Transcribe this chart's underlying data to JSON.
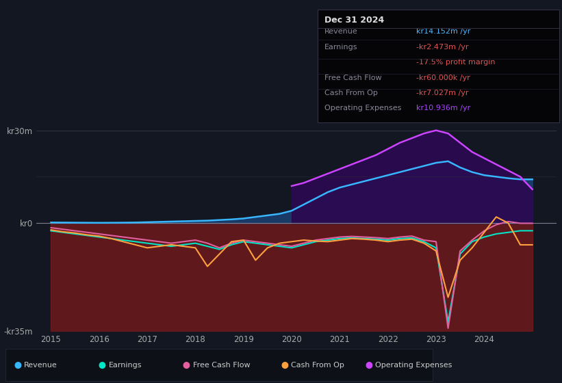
{
  "background_color": "#131722",
  "plot_bg_color": "#131722",
  "title_box": {
    "date": "Dec 31 2024",
    "rows": [
      {
        "label": "Revenue",
        "value": "kr14.152m /yr",
        "value_color": "#4db8ff"
      },
      {
        "label": "Earnings",
        "value": "-kr2.473m /yr",
        "value_color": "#e05555"
      },
      {
        "label": "",
        "value": "-17.5% profit margin",
        "value_color": "#e05555"
      },
      {
        "label": "Free Cash Flow",
        "value": "-kr60.000k /yr",
        "value_color": "#e05555"
      },
      {
        "label": "Cash From Op",
        "value": "-kr7.027m /yr",
        "value_color": "#e05555"
      },
      {
        "label": "Operating Expenses",
        "value": "kr10.936m /yr",
        "value_color": "#aa44ff"
      }
    ]
  },
  "ylim": [
    -35000000,
    35000000
  ],
  "yticks": [
    30000000,
    0,
    -35000000
  ],
  "ytick_labels": [
    "kr30m",
    "kr0",
    "-kr35m"
  ],
  "xlim_start": 2014.7,
  "xlim_end": 2025.5,
  "xticks": [
    2015,
    2016,
    2017,
    2018,
    2019,
    2020,
    2021,
    2022,
    2023,
    2024
  ],
  "series": {
    "revenue": {
      "color": "#38b6ff",
      "label": "Revenue"
    },
    "earnings": {
      "color": "#00e5c8",
      "label": "Earnings"
    },
    "free_cash_flow": {
      "color": "#e060a0",
      "label": "Free Cash Flow"
    },
    "cash_from_op": {
      "color": "#ffa040",
      "label": "Cash From Op"
    },
    "operating_expenses": {
      "color": "#cc44ff",
      "label": "Operating Expenses"
    }
  },
  "legend": {
    "items": [
      {
        "label": "Revenue",
        "color": "#38b6ff"
      },
      {
        "label": "Earnings",
        "color": "#00e5c8"
      },
      {
        "label": "Free Cash Flow",
        "color": "#e060a0"
      },
      {
        "label": "Cash From Op",
        "color": "#ffa040"
      },
      {
        "label": "Operating Expenses",
        "color": "#cc44ff"
      }
    ]
  },
  "x_years": [
    2015.0,
    2015.25,
    2015.5,
    2015.75,
    2016.0,
    2016.25,
    2016.5,
    2016.75,
    2017.0,
    2017.25,
    2017.5,
    2017.75,
    2018.0,
    2018.25,
    2018.5,
    2018.75,
    2019.0,
    2019.25,
    2019.5,
    2019.75,
    2020.0,
    2020.25,
    2020.5,
    2020.75,
    2021.0,
    2021.25,
    2021.5,
    2021.75,
    2022.0,
    2022.25,
    2022.5,
    2022.75,
    2023.0,
    2023.25,
    2023.5,
    2023.75,
    2024.0,
    2024.25,
    2024.5,
    2024.75,
    2025.0
  ],
  "revenue_data": [
    200000,
    180000,
    150000,
    120000,
    100000,
    120000,
    150000,
    200000,
    300000,
    400000,
    500000,
    600000,
    700000,
    800000,
    1000000,
    1200000,
    1500000,
    2000000,
    2500000,
    3000000,
    4000000,
    6000000,
    8000000,
    10000000,
    11500000,
    12500000,
    13500000,
    14500000,
    15500000,
    16500000,
    17500000,
    18500000,
    19500000,
    20000000,
    18000000,
    16500000,
    15500000,
    15000000,
    14500000,
    14152000,
    14152000
  ],
  "earnings_data": [
    -2500000,
    -3000000,
    -3500000,
    -4000000,
    -4500000,
    -5000000,
    -5500000,
    -6000000,
    -6500000,
    -7000000,
    -7500000,
    -7000000,
    -6500000,
    -7500000,
    -8500000,
    -7000000,
    -6000000,
    -6500000,
    -7000000,
    -7500000,
    -8000000,
    -7000000,
    -6000000,
    -5500000,
    -5000000,
    -4800000,
    -5000000,
    -5200000,
    -5500000,
    -5000000,
    -4800000,
    -6000000,
    -8000000,
    -32000000,
    -10000000,
    -6000000,
    -4500000,
    -3500000,
    -3000000,
    -2473000,
    -2473000
  ],
  "free_cash_flow_data": [
    -1500000,
    -2000000,
    -2500000,
    -3000000,
    -3500000,
    -4000000,
    -4500000,
    -5000000,
    -5500000,
    -6000000,
    -6500000,
    -6000000,
    -5500000,
    -6500000,
    -8000000,
    -6500000,
    -5500000,
    -6000000,
    -6500000,
    -7000000,
    -7500000,
    -6500000,
    -5500000,
    -5000000,
    -4500000,
    -4300000,
    -4500000,
    -4700000,
    -5000000,
    -4500000,
    -4200000,
    -5500000,
    -6000000,
    -34000000,
    -9000000,
    -5500000,
    -2500000,
    -500000,
    500000,
    -60000,
    -60000
  ],
  "cash_from_op_data": [
    -2200000,
    -2800000,
    -3200000,
    -3800000,
    -4200000,
    -5000000,
    -6000000,
    -7000000,
    -8000000,
    -7500000,
    -7000000,
    -7500000,
    -8000000,
    -14000000,
    -10000000,
    -6000000,
    -5500000,
    -12000000,
    -8000000,
    -6500000,
    -6000000,
    -5500000,
    -5800000,
    -6000000,
    -5500000,
    -5000000,
    -5200000,
    -5500000,
    -6000000,
    -5500000,
    -5200000,
    -6500000,
    -9000000,
    -24000000,
    -12000000,
    -8000000,
    -3000000,
    2000000,
    0,
    -7027000,
    -7027000
  ],
  "op_expenses_data": [
    0,
    0,
    0,
    0,
    0,
    0,
    0,
    0,
    0,
    0,
    0,
    0,
    0,
    0,
    0,
    0,
    0,
    0,
    0,
    0,
    12000000,
    13000000,
    14500000,
    16000000,
    17500000,
    19000000,
    20500000,
    22000000,
    24000000,
    26000000,
    27500000,
    29000000,
    30000000,
    29000000,
    26000000,
    23000000,
    21000000,
    19000000,
    17000000,
    15000000,
    10936000
  ]
}
